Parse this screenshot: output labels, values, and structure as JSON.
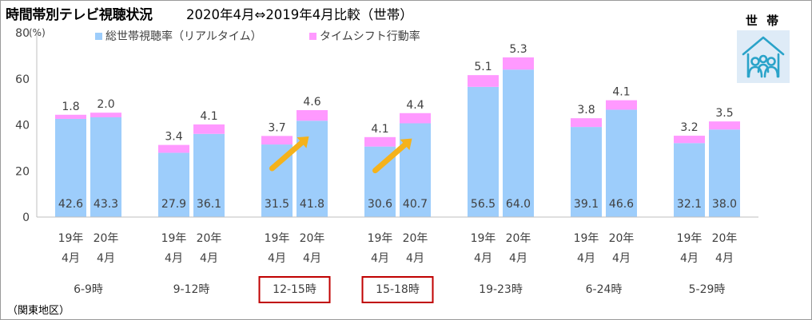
{
  "title": "時間帯別テレビ視聴状況",
  "subtitle": "2020年4月⇔2019年4月比較（世帯）",
  "badge_label": "世 帯",
  "badge_icon": "household-people-icon",
  "region_note": "（関東地区）",
  "chart_data": {
    "type": "bar",
    "stacked": true,
    "y_unit": "(%)",
    "ylim": [
      0,
      80
    ],
    "y_ticks": [
      0,
      20,
      40,
      60,
      80
    ],
    "grid": false,
    "legend_position": "top",
    "groups": [
      "6-9時",
      "9-12時",
      "12-15時",
      "15-18時",
      "19-23時",
      "6-24時",
      "5-29時"
    ],
    "highlighted_groups": [
      "12-15時",
      "15-18時"
    ],
    "bar_year_labels": [
      "19年",
      "20年"
    ],
    "bar_month_label": "4月",
    "series": [
      {
        "name": "総世帯視聴率（リアルタイム）",
        "color": "#9dcdfb",
        "values": [
          [
            42.6,
            43.3
          ],
          [
            27.9,
            36.1
          ],
          [
            31.5,
            41.8
          ],
          [
            30.6,
            40.7
          ],
          [
            56.5,
            64.0
          ],
          [
            39.1,
            46.6
          ],
          [
            32.1,
            38.0
          ]
        ],
        "labels": [
          [
            "42.6",
            "43.3"
          ],
          [
            "27.9",
            "36.1"
          ],
          [
            "31.5",
            "41.8"
          ],
          [
            "30.6",
            "40.7"
          ],
          [
            "56.5",
            "64.0"
          ],
          [
            "39.1",
            "46.6"
          ],
          [
            "32.1",
            "38.0"
          ]
        ]
      },
      {
        "name": "タイムシフト行動率",
        "color": "#ff99ff",
        "values": [
          [
            1.8,
            2.0
          ],
          [
            3.4,
            4.1
          ],
          [
            3.7,
            4.6
          ],
          [
            4.1,
            4.4
          ],
          [
            5.1,
            5.3
          ],
          [
            3.8,
            4.1
          ],
          [
            3.2,
            3.5
          ]
        ],
        "labels": [
          [
            "1.8",
            "2.0"
          ],
          [
            "3.4",
            "4.1"
          ],
          [
            "3.7",
            "4.6"
          ],
          [
            "4.1",
            "4.4"
          ],
          [
            "5.1",
            "5.3"
          ],
          [
            "3.8",
            "4.1"
          ],
          [
            "3.2",
            "3.5"
          ]
        ]
      }
    ],
    "arrow_color": "#f5b21b",
    "highlight_box_color": "#c00000"
  }
}
